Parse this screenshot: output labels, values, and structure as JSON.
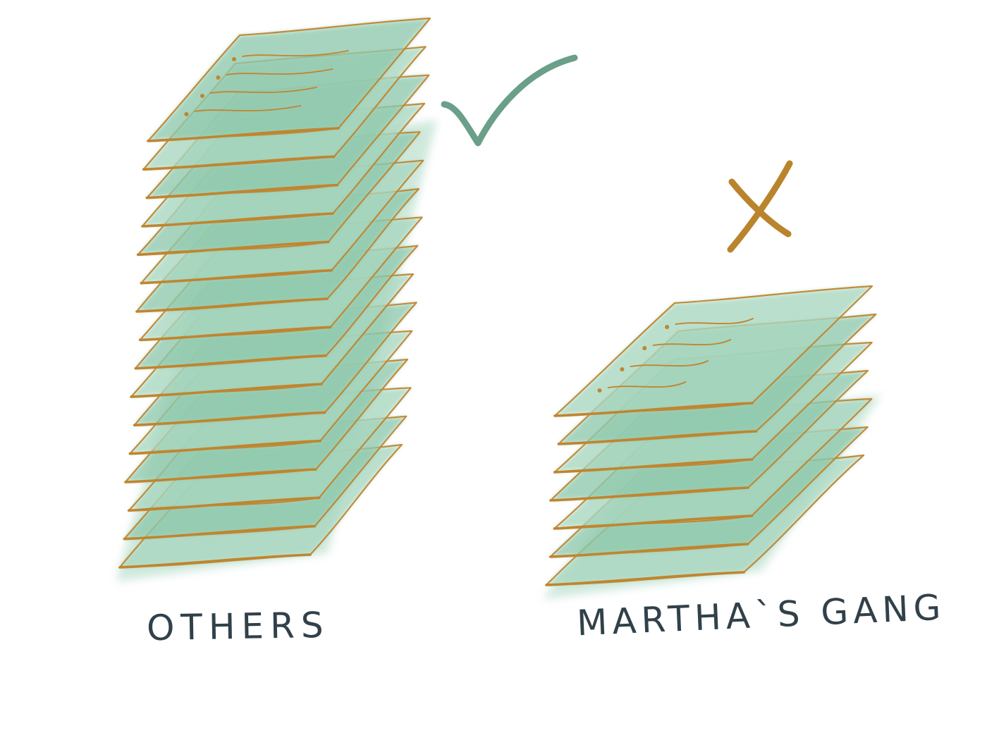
{
  "labels": {
    "left": "OTHERS",
    "right": "MARTHA`S GANG"
  },
  "stacks": {
    "left": {
      "sheet_count": 16,
      "verdict_icon": "checkmark-icon"
    },
    "right": {
      "sheet_count": 7,
      "verdict_icon": "cross-icon"
    }
  },
  "colors": {
    "paper_fill": "#a9d7c0",
    "paper_fill_deep": "#8fc9ad",
    "paper_edge": "#c0852f",
    "check": "#6a9f8a",
    "cross": "#b9842c",
    "label_ink": "#31414a",
    "background": "#ffffff"
  }
}
